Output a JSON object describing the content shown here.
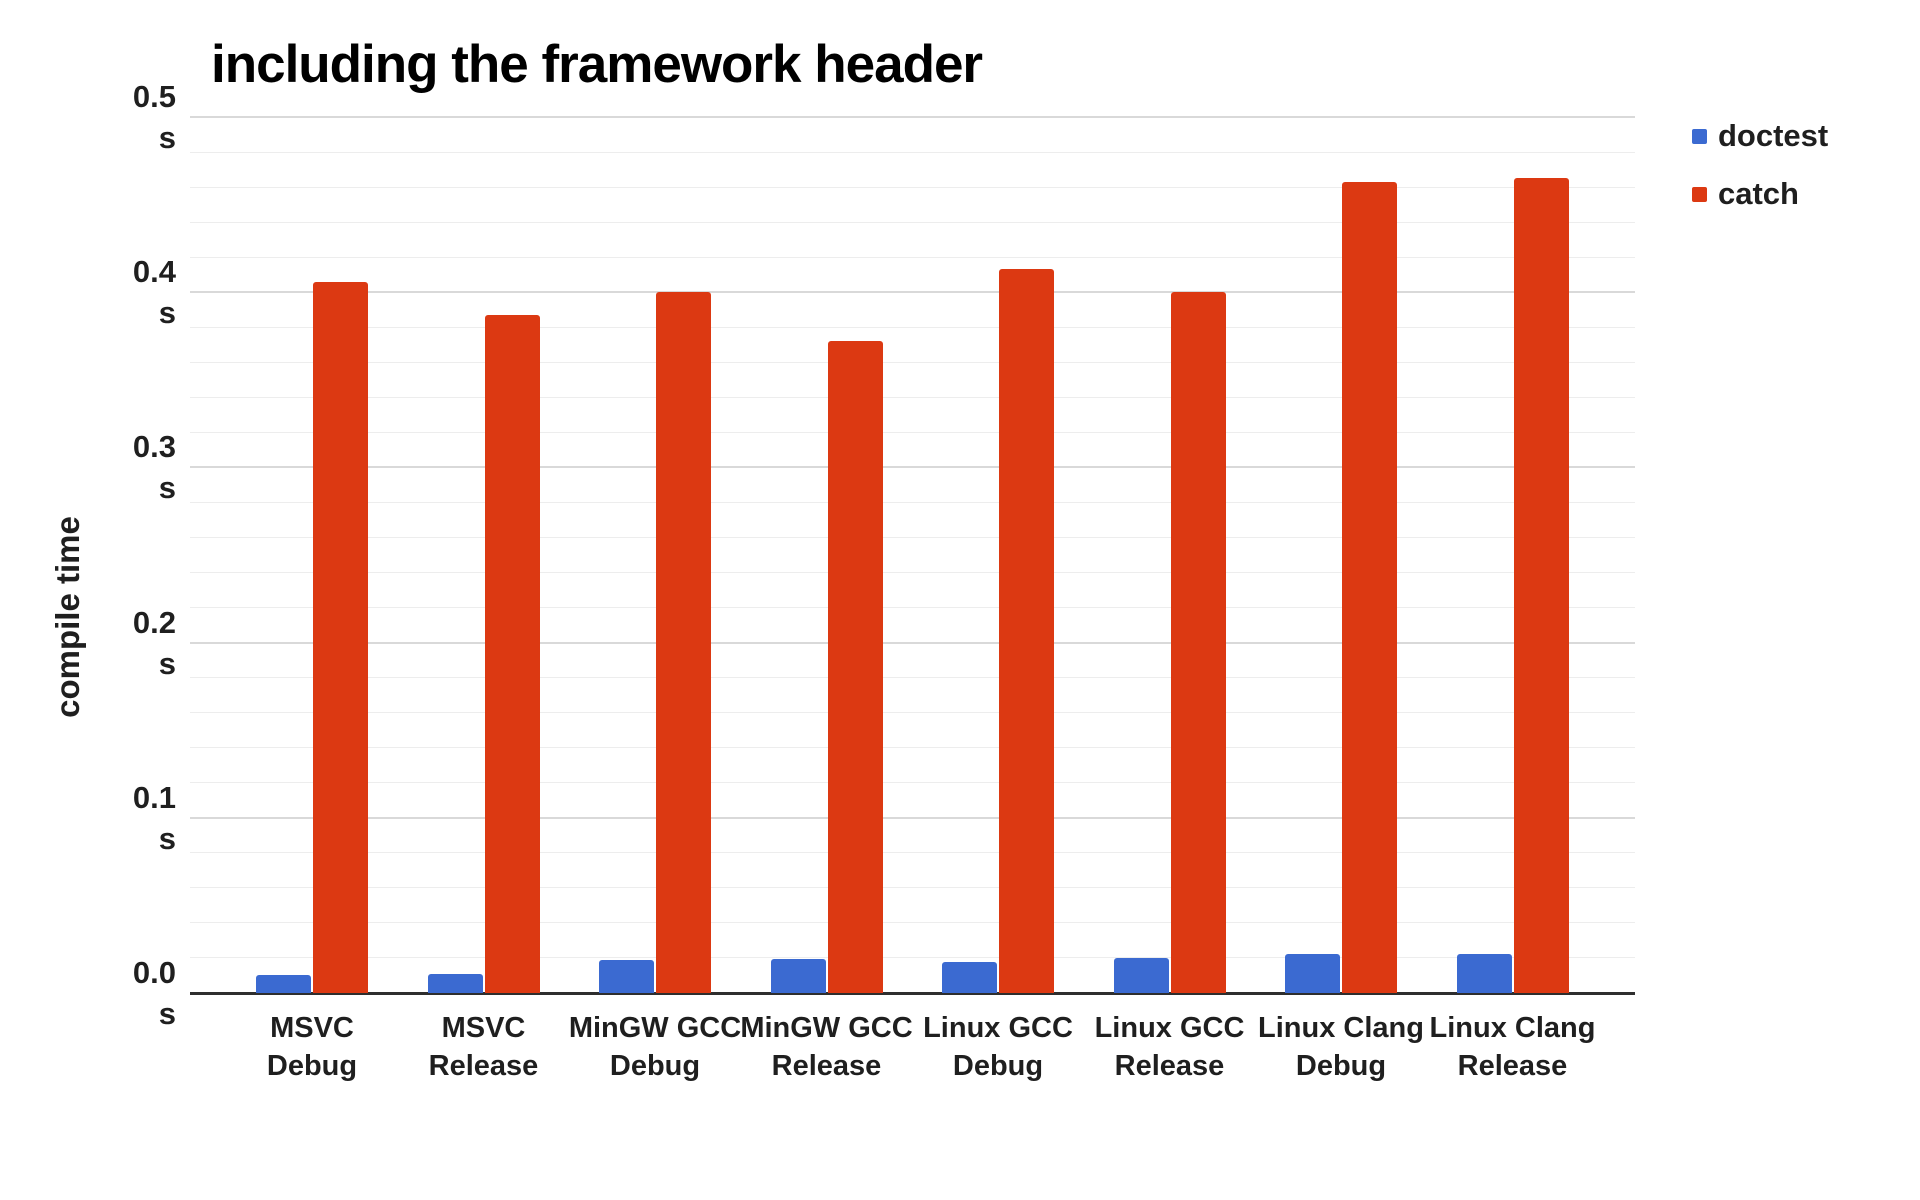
{
  "chart_data": {
    "type": "bar",
    "title": "including the framework header",
    "ylabel": "compile time",
    "xlabel": "",
    "unit": "s",
    "ylim": [
      0,
      0.5
    ],
    "y_major_step": 0.1,
    "y_minor_step": 0.02,
    "grid": true,
    "legend_position": "top-right",
    "categories": [
      {
        "line1": "MSVC",
        "line2": "Debug"
      },
      {
        "line1": "MSVC",
        "line2": "Release"
      },
      {
        "line1": "MinGW GCC",
        "line2": "Debug"
      },
      {
        "line1": "MinGW GCC",
        "line2": "Release"
      },
      {
        "line1": "Linux GCC",
        "line2": "Debug"
      },
      {
        "line1": "Linux GCC",
        "line2": "Release"
      },
      {
        "line1": "Linux Clang",
        "line2": "Debug"
      },
      {
        "line1": "Linux Clang",
        "line2": "Release"
      }
    ],
    "series": [
      {
        "name": "doctest",
        "color": "#3b6ad1",
        "values": [
          0.01,
          0.011,
          0.019,
          0.0195,
          0.0175,
          0.02,
          0.022,
          0.0225
        ]
      },
      {
        "name": "catch",
        "color": "#dc3912",
        "values": [
          0.406,
          0.387,
          0.4,
          0.372,
          0.413,
          0.4,
          0.463,
          0.465
        ]
      }
    ],
    "y_ticks": [
      {
        "label": "0.0",
        "unit": "s",
        "value": 0.0
      },
      {
        "label": "0.1",
        "unit": "s",
        "value": 0.1
      },
      {
        "label": "0.2",
        "unit": "s",
        "value": 0.2
      },
      {
        "label": "0.3",
        "unit": "s",
        "value": 0.3
      },
      {
        "label": "0.4",
        "unit": "s",
        "value": 0.4
      },
      {
        "label": "0.5",
        "unit": "s",
        "value": 0.5
      }
    ]
  }
}
